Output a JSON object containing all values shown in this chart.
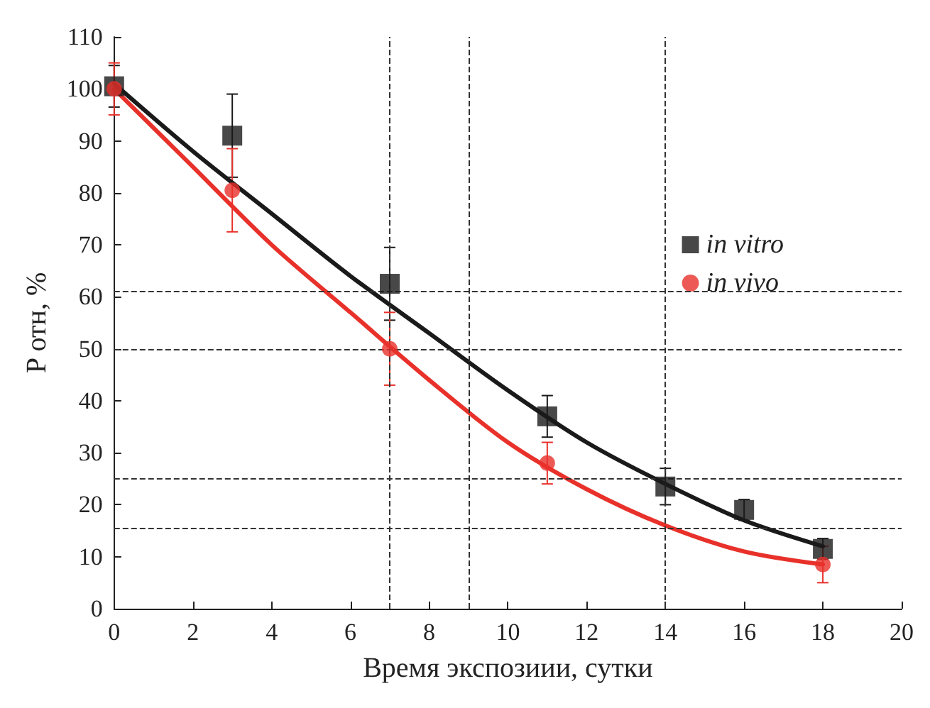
{
  "chart_data": {
    "type": "scatter",
    "xlabel": "Время экспозиии, сутки",
    "ylabel": "P отн, %",
    "xlim": [
      0,
      20
    ],
    "xticks": [
      0,
      2,
      4,
      6,
      8,
      10,
      12,
      14,
      16,
      18,
      20
    ],
    "ylim": [
      0,
      110
    ],
    "yticks": [
      0,
      10,
      20,
      30,
      40,
      50,
      60,
      70,
      80,
      90,
      100,
      110
    ],
    "grid": false,
    "legend": "right",
    "series": [
      {
        "name": "in vitro",
        "color": "#1a1a1a",
        "marker": "square",
        "x": [
          0,
          3,
          7,
          11,
          14,
          16,
          18
        ],
        "values": [
          100.5,
          91,
          62.5,
          37,
          23.5,
          19,
          11.5
        ],
        "errors": [
          4,
          8,
          7,
          4,
          3.5,
          2,
          2
        ]
      },
      {
        "name": "in vivo",
        "color": "#e8312a",
        "marker": "circle",
        "x": [
          0,
          3,
          7,
          11,
          18
        ],
        "values": [
          100,
          80.5,
          50,
          28,
          8.5
        ],
        "errors": [
          5,
          8,
          7,
          4,
          3.5
        ]
      },
      {
        "type": "line",
        "color": "#1a1a1a",
        "x": [
          0,
          2,
          4,
          6,
          8,
          10,
          12,
          14,
          16,
          18
        ],
        "values": [
          101,
          88,
          76,
          64,
          53,
          42,
          32,
          24,
          17,
          12
        ]
      },
      {
        "type": "line",
        "color": "#e8312a",
        "x": [
          0,
          2,
          4,
          6,
          8,
          10,
          12,
          14,
          16,
          18
        ],
        "values": [
          100,
          85,
          70,
          57,
          44,
          32,
          23,
          16,
          11,
          8.5
        ]
      }
    ],
    "ref_lines": [
      {
        "axis": "y",
        "value": 61,
        "line_style": "dashed"
      },
      {
        "axis": "y",
        "value": 50,
        "line_style": "dashed"
      },
      {
        "axis": "y",
        "value": 25,
        "line_style": "dashed"
      },
      {
        "axis": "y",
        "value": 15.5,
        "line_style": "dashed"
      },
      {
        "axis": "x",
        "value": 7,
        "line_style": "dashed"
      },
      {
        "axis": "x",
        "value": 9,
        "line_style": "dashed"
      },
      {
        "axis": "x",
        "value": 14,
        "line_style": "dashed"
      }
    ]
  }
}
